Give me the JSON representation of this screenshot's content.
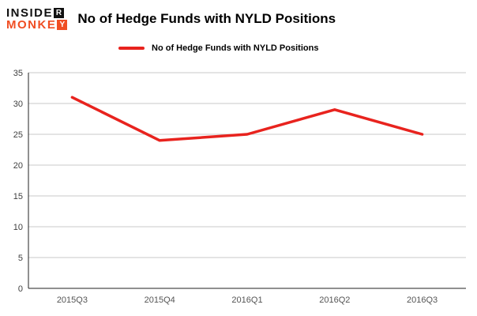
{
  "logo": {
    "word1": "INSIDE",
    "word1_boxed": "R",
    "word2": "MONKE",
    "word2_boxed": "Y",
    "word1_color": "#111111",
    "word2_color": "#f04e23"
  },
  "chart_data": {
    "type": "line",
    "title": "No of Hedge Funds with NYLD Positions",
    "categories": [
      "2015Q3",
      "2015Q4",
      "2016Q1",
      "2016Q2",
      "2016Q3"
    ],
    "series": [
      {
        "name": "No of Hedge Funds with NYLD Positions",
        "values": [
          31,
          24,
          25,
          29,
          25
        ]
      }
    ],
    "ylim": [
      0,
      35
    ],
    "ytick_step": 5,
    "grid": true,
    "legend_position": "top-left",
    "line_color": "#e8231e",
    "gridline_color": "#c9c9c9",
    "axis_color": "#222222",
    "tick_label_color": "#404040",
    "x_label_color": "#555555"
  }
}
